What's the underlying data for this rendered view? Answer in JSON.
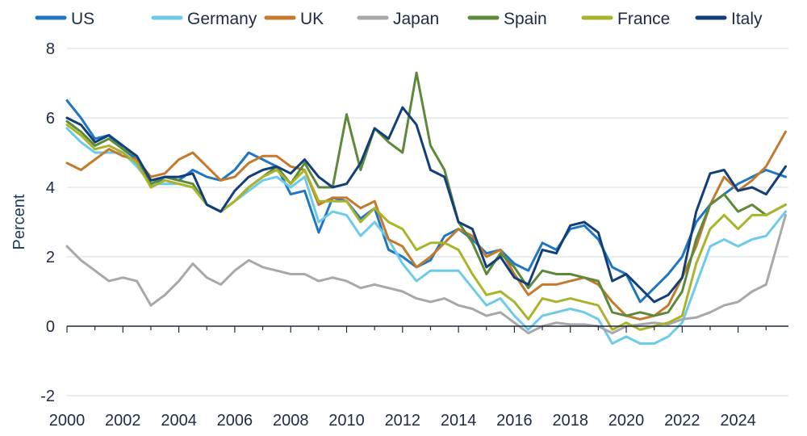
{
  "chart_data": {
    "type": "line",
    "title": "",
    "xlabel": "",
    "ylabel": "Percent",
    "xlim": [
      2000,
      2025.8
    ],
    "ylim": [
      -2,
      8
    ],
    "yticks": [
      -2,
      0,
      2,
      4,
      6,
      8
    ],
    "xticks": [
      2000,
      2002,
      2004,
      2006,
      2008,
      2010,
      2012,
      2014,
      2016,
      2018,
      2020,
      2022,
      2024
    ],
    "grid": "horizontal",
    "legend": "top",
    "x": [
      2000,
      2000.5,
      2001,
      2001.5,
      2002,
      2002.5,
      2003,
      2003.5,
      2004,
      2004.5,
      2005,
      2005.5,
      2006,
      2006.5,
      2007,
      2007.5,
      2008,
      2008.5,
      2009,
      2009.5,
      2010,
      2010.5,
      2011,
      2011.5,
      2012,
      2012.5,
      2013,
      2013.5,
      2014,
      2014.5,
      2015,
      2015.5,
      2016,
      2016.5,
      2017,
      2017.5,
      2018,
      2018.5,
      2019,
      2019.5,
      2020,
      2020.5,
      2021,
      2021.5,
      2022,
      2022.5,
      2023,
      2023.5,
      2024,
      2024.5,
      2025,
      2025.7
    ],
    "series": [
      {
        "name": "US",
        "color": "#1f77c4",
        "values": [
          6.5,
          6.0,
          5.4,
          5.5,
          5.1,
          4.8,
          4.0,
          4.3,
          4.2,
          4.5,
          4.3,
          4.2,
          4.5,
          5.0,
          4.8,
          4.6,
          3.8,
          3.9,
          2.7,
          3.7,
          3.6,
          3.1,
          3.4,
          2.2,
          2.0,
          1.7,
          1.9,
          2.6,
          2.8,
          2.5,
          2.1,
          2.2,
          1.8,
          1.6,
          2.4,
          2.2,
          2.8,
          2.9,
          2.5,
          1.7,
          1.5,
          0.7,
          1.1,
          1.5,
          2.0,
          3.0,
          3.5,
          3.8,
          4.1,
          4.3,
          4.5,
          4.3
        ]
      },
      {
        "name": "Germany",
        "color": "#6ccbe8",
        "values": [
          5.7,
          5.3,
          5.0,
          5.0,
          5.0,
          4.6,
          4.1,
          4.1,
          4.1,
          4.0,
          3.5,
          3.3,
          3.6,
          3.9,
          4.2,
          4.3,
          4.0,
          4.3,
          3.0,
          3.3,
          3.2,
          2.6,
          3.0,
          2.5,
          1.8,
          1.3,
          1.6,
          1.6,
          1.6,
          1.1,
          0.6,
          0.8,
          0.3,
          -0.1,
          0.3,
          0.4,
          0.5,
          0.4,
          0.2,
          -0.5,
          -0.3,
          -0.5,
          -0.5,
          -0.3,
          0.1,
          1.2,
          2.3,
          2.5,
          2.3,
          2.5,
          2.6,
          3.3
        ]
      },
      {
        "name": "UK",
        "color": "#c47a2c",
        "values": [
          4.7,
          4.5,
          4.8,
          5.1,
          4.9,
          4.8,
          4.3,
          4.4,
          4.8,
          5.0,
          4.6,
          4.2,
          4.3,
          4.7,
          4.9,
          4.9,
          4.6,
          4.5,
          3.5,
          3.7,
          3.7,
          3.4,
          3.6,
          2.5,
          2.3,
          1.7,
          2.0,
          2.4,
          2.8,
          2.6,
          2.0,
          2.2,
          1.5,
          0.9,
          1.2,
          1.2,
          1.3,
          1.4,
          1.2,
          0.7,
          0.3,
          0.2,
          0.3,
          0.6,
          1.4,
          2.3,
          3.5,
          4.3,
          3.9,
          4.2,
          4.6,
          5.6
        ]
      },
      {
        "name": "Japan",
        "color": "#a8a8a8",
        "values": [
          2.3,
          1.9,
          1.6,
          1.3,
          1.4,
          1.3,
          0.6,
          0.9,
          1.3,
          1.8,
          1.4,
          1.2,
          1.6,
          1.9,
          1.7,
          1.6,
          1.5,
          1.5,
          1.3,
          1.4,
          1.3,
          1.1,
          1.2,
          1.1,
          1.0,
          0.8,
          0.7,
          0.8,
          0.6,
          0.5,
          0.3,
          0.4,
          0.1,
          -0.2,
          0.0,
          0.1,
          0.05,
          0.05,
          0.0,
          -0.2,
          0.0,
          0.05,
          0.1,
          0.05,
          0.2,
          0.25,
          0.4,
          0.6,
          0.7,
          1.0,
          1.2,
          3.2
        ]
      },
      {
        "name": "Spain",
        "color": "#5c8a3a",
        "values": [
          5.9,
          5.6,
          5.2,
          5.4,
          5.1,
          4.9,
          4.1,
          4.3,
          4.2,
          4.1,
          3.5,
          3.3,
          3.6,
          4.0,
          4.3,
          4.6,
          4.1,
          4.7,
          4.0,
          4.0,
          6.1,
          4.5,
          5.7,
          5.3,
          5.0,
          7.3,
          5.2,
          4.5,
          3.0,
          2.4,
          1.5,
          2.1,
          1.7,
          1.1,
          1.6,
          1.5,
          1.5,
          1.4,
          1.3,
          0.4,
          0.3,
          0.4,
          0.3,
          0.4,
          1.0,
          2.5,
          3.5,
          3.8,
          3.3,
          3.5,
          3.2,
          3.5
        ]
      },
      {
        "name": "France",
        "color": "#a9b42b",
        "values": [
          5.8,
          5.5,
          5.1,
          5.2,
          5.0,
          4.7,
          4.0,
          4.2,
          4.1,
          4.0,
          3.5,
          3.3,
          3.6,
          4.0,
          4.3,
          4.5,
          4.1,
          4.5,
          3.6,
          3.6,
          3.6,
          3.0,
          3.4,
          3.0,
          2.8,
          2.2,
          2.4,
          2.4,
          2.2,
          1.5,
          0.9,
          1.0,
          0.7,
          0.2,
          0.8,
          0.7,
          0.8,
          0.7,
          0.6,
          -0.1,
          0.1,
          -0.1,
          0.0,
          0.1,
          0.3,
          1.8,
          2.8,
          3.2,
          2.8,
          3.2,
          3.2,
          3.5
        ]
      },
      {
        "name": "Italy",
        "color": "#123f7a",
        "values": [
          6.0,
          5.8,
          5.3,
          5.5,
          5.2,
          4.9,
          4.2,
          4.3,
          4.3,
          4.4,
          3.5,
          3.3,
          3.9,
          4.3,
          4.5,
          4.6,
          4.4,
          4.8,
          4.3,
          4.0,
          4.1,
          4.7,
          5.7,
          5.4,
          6.3,
          5.8,
          4.5,
          4.3,
          3.0,
          2.8,
          1.7,
          2.0,
          1.4,
          1.2,
          2.2,
          2.1,
          2.9,
          3.0,
          2.7,
          1.3,
          1.5,
          1.1,
          0.7,
          0.9,
          1.4,
          3.3,
          4.4,
          4.5,
          3.9,
          4.0,
          3.8,
          4.6
        ]
      }
    ]
  }
}
